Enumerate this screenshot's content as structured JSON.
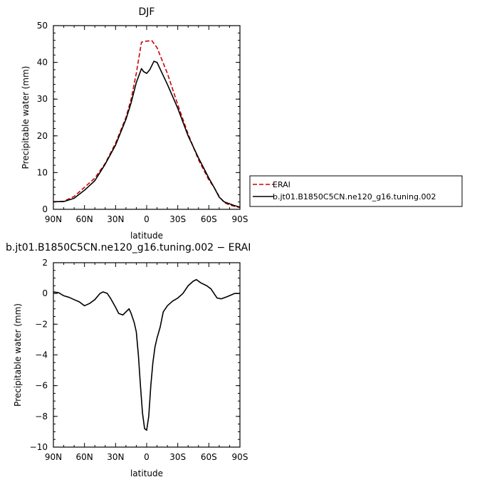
{
  "chart_data": [
    {
      "type": "line",
      "title": "DJF",
      "xlabel": "latitude",
      "ylabel": "Precipitable water (mm)",
      "xlim": [
        -90,
        90
      ],
      "ylim": [
        0,
        50
      ],
      "x_ticks": [
        -90,
        -60,
        -30,
        0,
        30,
        60,
        90
      ],
      "x_tick_labels": [
        "90N",
        "60N",
        "30N",
        "0",
        "30S",
        "60S",
        "90S"
      ],
      "y_ticks": [
        0,
        10,
        20,
        30,
        40,
        50
      ],
      "y_tick_labels": [
        "0",
        "10",
        "20",
        "30",
        "40",
        "50"
      ],
      "legend_position": "right",
      "series": [
        {
          "name": "ERAI",
          "color": "#cc0000",
          "dash": "dashed",
          "x": [
            -90,
            -80,
            -70,
            -60,
            -50,
            -40,
            -30,
            -20,
            -15,
            -10,
            -5,
            0,
            5,
            10,
            15,
            20,
            30,
            40,
            50,
            60,
            65,
            70,
            75,
            80,
            85,
            90
          ],
          "y": [
            2.0,
            2.2,
            3.5,
            6.0,
            8.5,
            12.5,
            18.0,
            25.0,
            30.0,
            37.0,
            45.5,
            45.8,
            45.9,
            44.0,
            40.5,
            37.0,
            28.5,
            20.5,
            13.5,
            8.0,
            6.0,
            3.5,
            1.8,
            1.2,
            0.8,
            0.5
          ]
        },
        {
          "name": "b.jt01.B1850C5CN.ne120_g16.tuning.002",
          "color": "#000000",
          "dash": "solid",
          "x": [
            -90,
            -80,
            -70,
            -60,
            -50,
            -40,
            -30,
            -20,
            -15,
            -10,
            -5,
            -3,
            0,
            3,
            7,
            10,
            15,
            20,
            30,
            40,
            50,
            60,
            65,
            70,
            75,
            80,
            85,
            90
          ],
          "y": [
            2.1,
            2.1,
            3.0,
            5.2,
            7.8,
            12.3,
            17.5,
            24.5,
            29.0,
            34.5,
            38.3,
            37.5,
            37.0,
            38.0,
            40.3,
            40.0,
            37.0,
            34.0,
            27.5,
            20.0,
            14.0,
            8.5,
            6.0,
            3.3,
            2.0,
            1.5,
            1.0,
            0.6
          ]
        }
      ]
    },
    {
      "type": "line",
      "title": "b.jt01.B1850C5CN.ne120_g16.tuning.002 − ERAI",
      "xlabel": "latitude",
      "ylabel": "Precipitable water (mm)",
      "xlim": [
        -90,
        90
      ],
      "ylim": [
        -10,
        2
      ],
      "x_ticks": [
        -90,
        -60,
        -30,
        0,
        30,
        60,
        90
      ],
      "x_tick_labels": [
        "90N",
        "60N",
        "30N",
        "0",
        "30S",
        "60S",
        "90S"
      ],
      "y_ticks": [
        -10,
        -8,
        -6,
        -4,
        -2,
        0,
        2
      ],
      "y_tick_labels": [
        "−10",
        "−8",
        "−6",
        "−4",
        "−2",
        "0",
        "2"
      ],
      "series": [
        {
          "name": "",
          "color": "#000000",
          "dash": "solid",
          "x": [
            -90,
            -85,
            -80,
            -75,
            -70,
            -65,
            -60,
            -55,
            -50,
            -45,
            -42,
            -38,
            -35,
            -30,
            -27,
            -23,
            -20,
            -17,
            -15,
            -12,
            -10,
            -8,
            -6,
            -4,
            -2,
            0,
            2,
            4,
            6,
            8,
            10,
            13,
            16,
            20,
            25,
            30,
            35,
            40,
            45,
            48,
            52,
            58,
            62,
            65,
            68,
            72,
            78,
            85,
            90
          ],
          "y": [
            0.1,
            0.05,
            -0.15,
            -0.25,
            -0.4,
            -0.55,
            -0.8,
            -0.65,
            -0.4,
            0.0,
            0.1,
            0.0,
            -0.3,
            -0.9,
            -1.3,
            -1.4,
            -1.2,
            -1.0,
            -1.3,
            -1.9,
            -2.5,
            -4.0,
            -6.0,
            -7.8,
            -8.8,
            -8.9,
            -8.0,
            -6.0,
            -4.5,
            -3.5,
            -2.9,
            -2.2,
            -1.2,
            -0.8,
            -0.5,
            -0.3,
            0.0,
            0.5,
            0.8,
            0.9,
            0.7,
            0.5,
            0.3,
            0.0,
            -0.3,
            -0.35,
            -0.2,
            0.0,
            0.0
          ]
        }
      ]
    }
  ]
}
